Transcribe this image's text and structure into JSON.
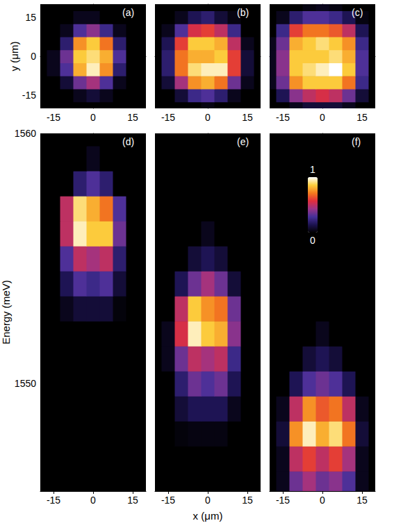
{
  "chart_data": [
    {
      "type": "heatmap",
      "title": "(a)",
      "ylabel": "y (μm)",
      "xlim": [
        -20,
        20
      ],
      "xticks": [
        -15,
        0,
        15
      ],
      "ylim": [
        -20,
        20
      ],
      "yticks": [
        -15,
        0,
        15
      ],
      "cells": {
        "x": [
          -20,
          -15,
          -10,
          -5,
          0,
          5,
          10,
          15,
          20
        ],
        "y": [
          -20,
          -15,
          -10,
          -5,
          0,
          5,
          10,
          15,
          20
        ],
        "values": [
          [
            0,
            0,
            0,
            0,
            0,
            0,
            0,
            0,
            0
          ],
          [
            0,
            0,
            0,
            0.05,
            0.1,
            0.05,
            0,
            0,
            0
          ],
          [
            0,
            0,
            0.1,
            0.35,
            0.45,
            0.3,
            0.05,
            0,
            0
          ],
          [
            0,
            0.05,
            0.3,
            0.8,
            0.95,
            0.75,
            0.2,
            0,
            0
          ],
          [
            0,
            0.05,
            0.35,
            0.85,
            0.9,
            0.8,
            0.3,
            0,
            0
          ],
          [
            0,
            0,
            0.2,
            0.75,
            0.85,
            0.7,
            0.2,
            0,
            0
          ],
          [
            0,
            0,
            0.05,
            0.3,
            0.4,
            0.25,
            0.05,
            0,
            0
          ],
          [
            0,
            0,
            0,
            0.05,
            0.05,
            0,
            0,
            0,
            0
          ],
          [
            0,
            0,
            0,
            0,
            0,
            0,
            0,
            0,
            0
          ]
        ]
      }
    },
    {
      "type": "heatmap",
      "title": "(b)",
      "tick_labels": "x",
      "xlim": [
        -20,
        20
      ],
      "xticks": [
        -15,
        0,
        15
      ],
      "ylim": [
        -20,
        20
      ],
      "yticks": [
        -15,
        0,
        15
      ],
      "cells": {
        "x": [
          -20,
          -15,
          -10,
          -5,
          0,
          5,
          10,
          15,
          20
        ],
        "y": [
          -20,
          -15,
          -10,
          -5,
          0,
          5,
          10,
          15,
          20
        ],
        "values": [
          [
            0,
            0,
            0,
            0,
            0.03,
            0,
            0,
            0,
            0
          ],
          [
            0,
            0,
            0.1,
            0.25,
            0.3,
            0.2,
            0.05,
            0,
            0
          ],
          [
            0,
            0.1,
            0.45,
            0.75,
            0.8,
            0.7,
            0.35,
            0.05,
            0
          ],
          [
            0,
            0.2,
            0.7,
            0.9,
            0.95,
            0.95,
            0.6,
            0.1,
            0
          ],
          [
            0,
            0.2,
            0.7,
            0.8,
            0.8,
            0.85,
            0.6,
            0.1,
            0
          ],
          [
            0,
            0.15,
            0.6,
            0.85,
            0.85,
            0.8,
            0.5,
            0.05,
            0
          ],
          [
            0,
            0.05,
            0.3,
            0.55,
            0.6,
            0.5,
            0.25,
            0,
            0
          ],
          [
            0,
            0,
            0.05,
            0.15,
            0.2,
            0.1,
            0.03,
            0,
            0
          ],
          [
            0,
            0,
            0,
            0,
            0,
            0,
            0,
            0,
            0
          ]
        ]
      }
    },
    {
      "type": "heatmap",
      "title": "(c)",
      "tick_labels": "x",
      "xlim": [
        -20,
        20
      ],
      "xticks": [
        -15,
        0,
        15
      ],
      "ylim": [
        -20,
        20
      ],
      "yticks": [
        -15,
        0,
        15
      ],
      "cells": {
        "x": [
          -20,
          -15,
          -10,
          -5,
          0,
          5,
          10,
          15,
          20
        ],
        "y": [
          -20,
          -15,
          -10,
          -5,
          0,
          5,
          10,
          15,
          20
        ],
        "values": [
          [
            0,
            0,
            0.05,
            0.1,
            0.1,
            0.1,
            0.05,
            0,
            0
          ],
          [
            0,
            0.15,
            0.4,
            0.5,
            0.55,
            0.5,
            0.35,
            0.1,
            0
          ],
          [
            0.05,
            0.35,
            0.75,
            0.85,
            0.85,
            0.85,
            0.7,
            0.25,
            0
          ],
          [
            0.05,
            0.4,
            0.85,
            0.9,
            0.95,
            1.0,
            0.85,
            0.3,
            0
          ],
          [
            0.05,
            0.4,
            0.85,
            0.85,
            0.85,
            0.9,
            0.8,
            0.3,
            0
          ],
          [
            0.05,
            0.35,
            0.8,
            0.85,
            0.9,
            0.85,
            0.75,
            0.25,
            0
          ],
          [
            0,
            0.25,
            0.6,
            0.7,
            0.7,
            0.65,
            0.5,
            0.15,
            0
          ],
          [
            0,
            0.05,
            0.2,
            0.3,
            0.3,
            0.25,
            0.15,
            0.03,
            0
          ],
          [
            0,
            0,
            0,
            0.03,
            0.05,
            0.03,
            0,
            0,
            0
          ]
        ]
      }
    },
    {
      "type": "heatmap",
      "title": "(d)",
      "ylabel": "Energy (meV)",
      "xlim": [
        -20,
        20
      ],
      "xticks": [
        -15,
        0,
        15
      ],
      "ylim": [
        1545.7,
        1560
      ],
      "yticks": [
        1550,
        1560
      ],
      "cells": {
        "x": [
          -20,
          -15,
          -10,
          -5,
          0,
          5,
          10,
          15,
          20
        ],
        "y": [
          1546,
          1547,
          1548,
          1549,
          1550,
          1551,
          1552,
          1553,
          1554,
          1555,
          1556,
          1557,
          1558,
          1559,
          1560
        ],
        "values": [
          [
            0,
            0,
            0,
            0,
            0,
            0,
            0,
            0,
            0
          ],
          [
            0,
            0,
            0,
            0,
            0,
            0,
            0,
            0,
            0
          ],
          [
            0,
            0,
            0,
            0,
            0,
            0,
            0,
            0,
            0
          ],
          [
            0,
            0,
            0,
            0,
            0,
            0,
            0,
            0,
            0
          ],
          [
            0,
            0,
            0,
            0,
            0,
            0,
            0,
            0,
            0
          ],
          [
            0,
            0,
            0,
            0,
            0,
            0,
            0,
            0,
            0
          ],
          [
            0,
            0,
            0,
            0,
            0,
            0,
            0,
            0,
            0
          ],
          [
            0,
            0,
            0.05,
            0.1,
            0.1,
            0.1,
            0.02,
            0,
            0
          ],
          [
            0,
            0,
            0.15,
            0.3,
            0.25,
            0.3,
            0.1,
            0,
            0
          ],
          [
            0,
            0,
            0.3,
            0.5,
            0.45,
            0.5,
            0.2,
            0,
            0
          ],
          [
            0,
            0,
            0.5,
            0.95,
            0.85,
            0.85,
            0.35,
            0,
            0
          ],
          [
            0,
            0,
            0.5,
            0.9,
            0.8,
            0.7,
            0.3,
            0,
            0
          ],
          [
            0,
            0,
            0,
            0.2,
            0.3,
            0.2,
            0,
            0,
            0
          ],
          [
            0,
            0,
            0,
            0,
            0.05,
            0,
            0,
            0,
            0
          ],
          [
            0,
            0,
            0,
            0,
            0,
            0,
            0,
            0,
            0
          ]
        ]
      }
    },
    {
      "type": "heatmap",
      "title": "(e)",
      "xlabel": "x (μm)",
      "tick_labels": "x",
      "xlim": [
        -20,
        20
      ],
      "xticks": [
        -15,
        0,
        15
      ],
      "ylim": [
        1545.7,
        1560
      ],
      "yticks": [
        1550,
        1560
      ],
      "cells": {
        "x": [
          -20,
          -15,
          -10,
          -5,
          0,
          5,
          10,
          15,
          20
        ],
        "y": [
          1546,
          1547,
          1548,
          1549,
          1550,
          1551,
          1552,
          1553,
          1554,
          1555,
          1556,
          1557,
          1558,
          1559,
          1560
        ],
        "values": [
          [
            0,
            0,
            0,
            0,
            0,
            0,
            0,
            0,
            0
          ],
          [
            0,
            0,
            0,
            0,
            0,
            0,
            0,
            0,
            0
          ],
          [
            0,
            0,
            0.02,
            0.03,
            0.03,
            0.03,
            0,
            0,
            0
          ],
          [
            0,
            0,
            0.1,
            0.15,
            0.15,
            0.15,
            0.05,
            0,
            0
          ],
          [
            0,
            0,
            0.2,
            0.35,
            0.3,
            0.35,
            0.15,
            0,
            0
          ],
          [
            0,
            0.05,
            0.35,
            0.5,
            0.45,
            0.5,
            0.25,
            0,
            0
          ],
          [
            0,
            0.05,
            0.55,
            0.95,
            0.85,
            0.8,
            0.4,
            0,
            0
          ],
          [
            0,
            0,
            0.5,
            0.85,
            0.75,
            0.7,
            0.35,
            0,
            0
          ],
          [
            0,
            0,
            0.15,
            0.35,
            0.45,
            0.35,
            0.1,
            0,
            0
          ],
          [
            0,
            0,
            0,
            0.1,
            0.15,
            0.1,
            0,
            0,
            0
          ],
          [
            0,
            0,
            0,
            0,
            0.05,
            0,
            0,
            0,
            0
          ],
          [
            0,
            0,
            0,
            0,
            0,
            0,
            0,
            0,
            0
          ],
          [
            0,
            0,
            0,
            0,
            0,
            0,
            0,
            0,
            0
          ],
          [
            0,
            0,
            0,
            0,
            0,
            0,
            0,
            0,
            0
          ],
          [
            0,
            0,
            0,
            0,
            0,
            0,
            0,
            0,
            0
          ]
        ]
      }
    },
    {
      "type": "heatmap",
      "title": "(f)",
      "tick_labels": "x",
      "xlim": [
        -20,
        20
      ],
      "xticks": [
        -15,
        0,
        15
      ],
      "ylim": [
        1545.7,
        1560
      ],
      "yticks": [
        1550,
        1560
      ],
      "colorbar": {
        "range": [
          0,
          1
        ],
        "ticks": [
          0,
          1
        ]
      },
      "cells": {
        "x": [
          -20,
          -15,
          -10,
          -5,
          0,
          5,
          10,
          15,
          20
        ],
        "y": [
          1546,
          1547,
          1548,
          1549,
          1550,
          1551,
          1552,
          1553,
          1554,
          1555,
          1556,
          1557,
          1558,
          1559,
          1560
        ],
        "values": [
          [
            0,
            0.05,
            0.35,
            0.45,
            0.35,
            0.4,
            0.3,
            0.05,
            0
          ],
          [
            0,
            0.05,
            0.5,
            0.6,
            0.5,
            0.6,
            0.45,
            0.05,
            0
          ],
          [
            0,
            0.1,
            0.75,
            0.95,
            0.8,
            0.9,
            0.7,
            0.1,
            0
          ],
          [
            0,
            0.05,
            0.5,
            0.75,
            0.65,
            0.7,
            0.5,
            0.05,
            0
          ],
          [
            0,
            0,
            0.15,
            0.3,
            0.35,
            0.3,
            0.15,
            0,
            0
          ],
          [
            0,
            0,
            0,
            0.1,
            0.15,
            0.1,
            0,
            0,
            0
          ],
          [
            0,
            0,
            0,
            0,
            0.05,
            0,
            0,
            0,
            0
          ],
          [
            0,
            0,
            0,
            0,
            0,
            0,
            0,
            0,
            0
          ],
          [
            0,
            0,
            0,
            0,
            0,
            0,
            0,
            0,
            0
          ],
          [
            0,
            0,
            0,
            0,
            0,
            0,
            0,
            0,
            0
          ],
          [
            0,
            0,
            0,
            0,
            0,
            0,
            0,
            0,
            0
          ],
          [
            0,
            0,
            0,
            0,
            0,
            0,
            0,
            0,
            0
          ],
          [
            0,
            0,
            0,
            0,
            0,
            0,
            0,
            0,
            0
          ],
          [
            0,
            0,
            0,
            0,
            0,
            0,
            0,
            0,
            0
          ],
          [
            0,
            0,
            0,
            0,
            0,
            0,
            0,
            0,
            0
          ]
        ]
      }
    }
  ]
}
